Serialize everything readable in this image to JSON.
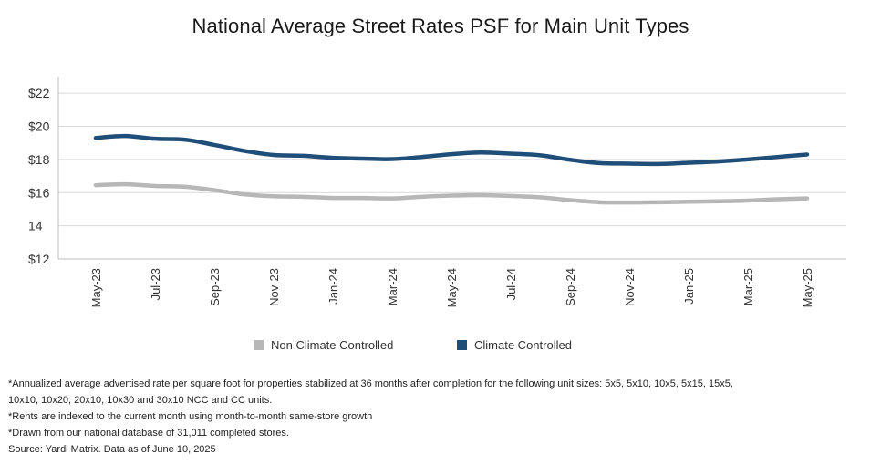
{
  "chart_data": {
    "type": "line",
    "title": "National Average Street Rates PSF for Main Unit Types",
    "xlabel": "",
    "ylabel": "",
    "ylim": [
      12,
      23
    ],
    "yticks": [
      {
        "value": 12,
        "label": "$12"
      },
      {
        "value": 14,
        "label": "14"
      },
      {
        "value": 16,
        "label": "$16"
      },
      {
        "value": 18,
        "label": "$18"
      },
      {
        "value": 20,
        "label": "$20"
      },
      {
        "value": 22,
        "label": "$22"
      }
    ],
    "x": [
      "May-23",
      "Jun-23",
      "Jul-23",
      "Aug-23",
      "Sep-23",
      "Oct-23",
      "Nov-23",
      "Dec-23",
      "Jan-24",
      "Feb-24",
      "Mar-24",
      "Apr-24",
      "May-24",
      "Jun-24",
      "Jul-24",
      "Aug-24",
      "Sep-24",
      "Oct-24",
      "Nov-24",
      "Dec-24",
      "Jan-25",
      "Feb-25",
      "Mar-25",
      "Apr-25",
      "May-25"
    ],
    "xtick_labels": [
      "May-23",
      "Jul-23",
      "Sep-23",
      "Nov-23",
      "Jan-24",
      "Mar-24",
      "May-24",
      "Jul-24",
      "Sep-24",
      "Nov-24",
      "Jan-25",
      "Mar-25",
      "May-25"
    ],
    "series": [
      {
        "name": "Non Climate Controlled",
        "color": "#b7b7b7",
        "values": [
          16.45,
          16.5,
          16.4,
          16.35,
          16.15,
          15.9,
          15.78,
          15.75,
          15.68,
          15.68,
          15.65,
          15.75,
          15.82,
          15.85,
          15.8,
          15.72,
          15.55,
          15.42,
          15.4,
          15.42,
          15.45,
          15.48,
          15.52,
          15.6,
          15.65
        ]
      },
      {
        "name": "Climate Controlled",
        "color": "#1f4e79",
        "values": [
          19.3,
          19.42,
          19.25,
          19.2,
          18.88,
          18.52,
          18.27,
          18.22,
          18.1,
          18.05,
          18.02,
          18.15,
          18.32,
          18.42,
          18.35,
          18.25,
          17.98,
          17.78,
          17.75,
          17.73,
          17.8,
          17.88,
          18.0,
          18.15,
          18.3
        ]
      }
    ],
    "legend_position": "bottom"
  },
  "footnotes": [
    "*Annualized average advertised rate per square foot for properties stabilized at 36 months after completion for the following unit sizes: 5x5, 5x10, 10x5, 5x15, 15x5,",
    "10x10, 10x20, 20x10, 10x30 and 30x10 NCC and CC units.",
    "*Rents are indexed to the current month using month-to-month same-store growth",
    "*Drawn from our national database of 31,011 completed stores.",
    "Source: Yardi Matrix. Data as of June 10, 2025"
  ]
}
